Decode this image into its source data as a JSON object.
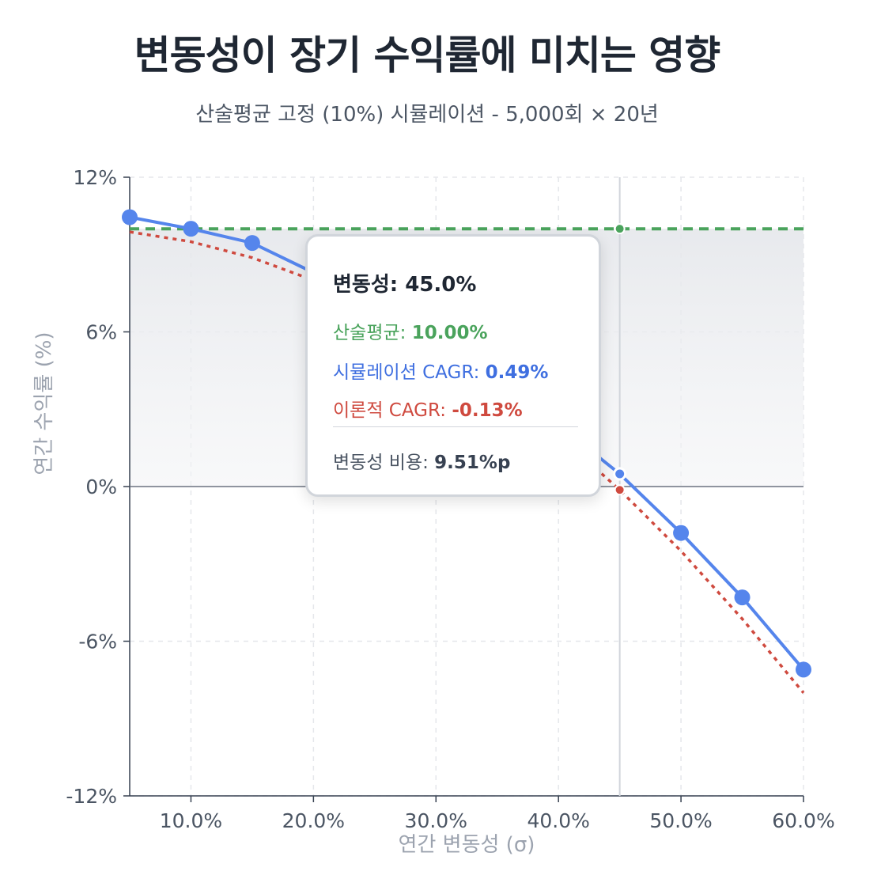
{
  "title": "변동성이 장기 수익률에 미치는 영향",
  "subtitle": "산술평균 고정 (10%) 시뮬레이션 - 5,000회 × 20년",
  "chart_data": {
    "type": "line",
    "xlabel": "연간 변동성 (σ)",
    "ylabel": "연간 수익률 (%)",
    "xlim": [
      5,
      60
    ],
    "ylim": [
      -12,
      12
    ],
    "x_ticks": [
      10,
      20,
      30,
      40,
      50,
      60
    ],
    "x_tick_labels": [
      "10.0%",
      "20.0%",
      "30.0%",
      "40.0%",
      "50.0%",
      "60.0%"
    ],
    "y_ticks": [
      12,
      6,
      0,
      -6,
      -12
    ],
    "y_tick_labels": [
      "12%",
      "6%",
      "0%",
      "-6%",
      "-12%"
    ],
    "grid": true,
    "x": [
      5,
      10,
      15,
      20,
      25,
      30,
      35,
      40,
      45,
      50,
      55,
      60
    ],
    "series": [
      {
        "name": "산술평균",
        "style": "dashed",
        "color": "#4aa35c",
        "values": [
          10,
          10,
          10,
          10,
          10,
          10,
          10,
          10,
          10,
          10,
          10,
          10
        ]
      },
      {
        "name": "시뮬레이션 CAGR",
        "style": "solid-markers",
        "color": "#5585ec",
        "values": [
          10.45,
          10.0,
          9.45,
          8.3,
          7.1,
          5.9,
          4.2,
          2.4,
          0.49,
          -1.8,
          -4.3,
          -7.1
        ]
      },
      {
        "name": "이론적 CAGR",
        "style": "dotted",
        "color": "#cf4a3f",
        "values": [
          9.88,
          9.5,
          8.88,
          8.0,
          6.88,
          5.5,
          3.88,
          2.0,
          -0.13,
          -2.5,
          -5.13,
          -8.0
        ]
      }
    ],
    "tooltip": {
      "title": "변동성: 45.0%",
      "arith_label": "산술평균: ",
      "arith_value": "10.00%",
      "sim_label": "시뮬레이션 CAGR: ",
      "sim_value": "0.49%",
      "theo_label": "이론적 CAGR: ",
      "theo_value": "-0.13%",
      "cost_label": "변동성 비용: ",
      "cost_value": "9.51%p",
      "x": 45
    }
  }
}
